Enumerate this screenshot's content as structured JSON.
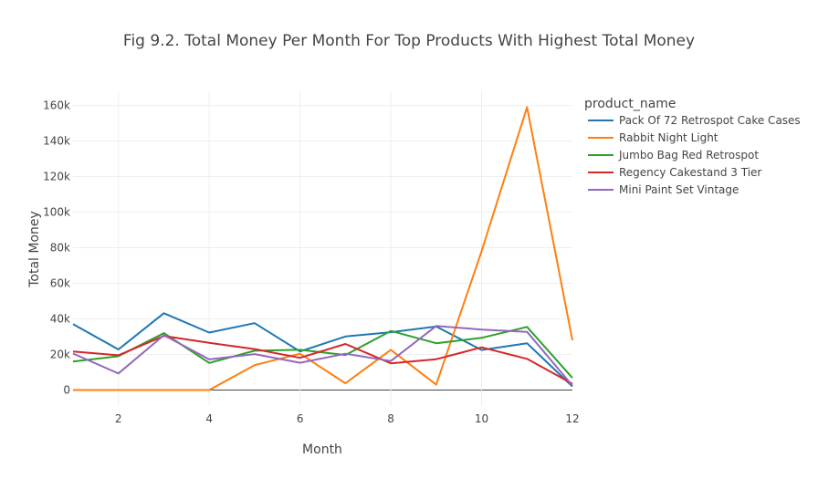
{
  "chart_data": {
    "type": "line",
    "title": "Fig 9.2. Total Money Per Month For Top Products With Highest Total Money",
    "xlabel": "Month",
    "ylabel": "Total Money",
    "xlim": [
      1,
      12
    ],
    "ylim": [
      -9000,
      168000
    ],
    "x_ticks": [
      2,
      4,
      6,
      8,
      10,
      12
    ],
    "y_ticks": [
      0,
      20000,
      40000,
      60000,
      80000,
      100000,
      120000,
      140000,
      160000
    ],
    "y_tick_labels": [
      "0",
      "20k",
      "40k",
      "60k",
      "80k",
      "100k",
      "120k",
      "140k",
      "160k"
    ],
    "grid": true,
    "legend": {
      "title": "product_name",
      "position": "right"
    },
    "x": [
      1,
      2,
      3,
      4,
      5,
      6,
      7,
      8,
      9,
      10,
      11,
      12
    ],
    "series": [
      {
        "name": "Pack Of 72 Retrospot Cake Cases",
        "color": "#1f77b4",
        "values": [
          37000,
          22800,
          43200,
          32300,
          37600,
          21700,
          30100,
          32500,
          35700,
          22500,
          26300,
          2000
        ]
      },
      {
        "name": "Rabbit Night Light",
        "color": "#ff7f0e",
        "values": [
          0,
          0,
          0,
          0,
          14000,
          20400,
          3800,
          22600,
          3000,
          78000,
          159000,
          28000
        ]
      },
      {
        "name": "Jumbo Bag Red Retrospot",
        "color": "#2ca02c",
        "values": [
          16000,
          19000,
          32000,
          15200,
          22100,
          22600,
          19700,
          33200,
          26300,
          29300,
          35500,
          6800
        ]
      },
      {
        "name": "Regency Cakestand 3 Tier",
        "color": "#d62728",
        "values": [
          21700,
          19500,
          30400,
          26500,
          23000,
          18100,
          25900,
          15000,
          17300,
          24000,
          17500,
          3500
        ]
      },
      {
        "name": "Mini Paint Set Vintage",
        "color": "#9467bd",
        "values": [
          20500,
          9300,
          30800,
          17200,
          20200,
          15300,
          20400,
          16300,
          36000,
          34000,
          32700,
          2500
        ]
      }
    ]
  }
}
